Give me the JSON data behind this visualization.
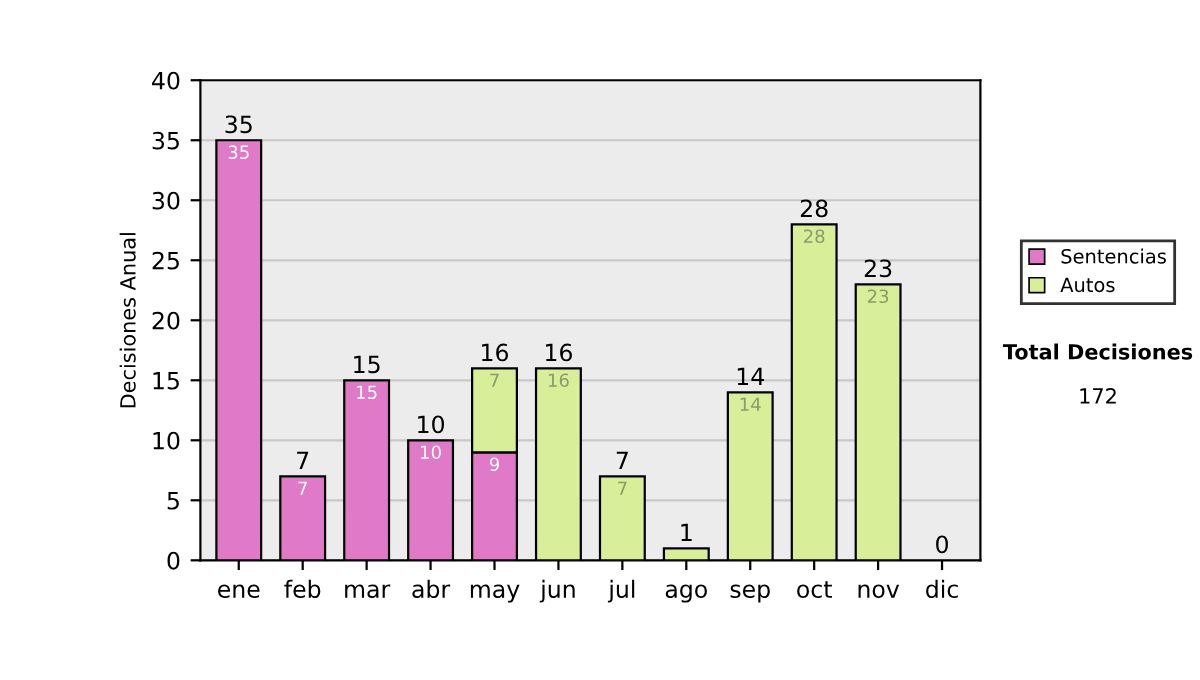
{
  "chart_data": {
    "type": "bar",
    "ylabel": "Decisiones Anual",
    "categories": [
      "ene",
      "feb",
      "mar",
      "abr",
      "may",
      "jun",
      "jul",
      "ago",
      "sep",
      "oct",
      "nov",
      "dic"
    ],
    "stacked": true,
    "series": [
      {
        "name": "Sentencias",
        "color": "#e07ac8",
        "values": [
          35,
          7,
          15,
          10,
          9,
          0,
          0,
          0,
          0,
          0,
          0,
          0
        ],
        "value_labels": [
          "35",
          "7",
          "15",
          "10",
          "9",
          null,
          null,
          null,
          null,
          null,
          null,
          null
        ]
      },
      {
        "name": "Autos",
        "color": "#d8ee98",
        "values": [
          0,
          0,
          0,
          0,
          7,
          16,
          7,
          1,
          14,
          28,
          23,
          0
        ],
        "value_labels": [
          null,
          null,
          null,
          null,
          "7",
          "16",
          "7",
          null,
          "14",
          "28",
          "23",
          null
        ]
      }
    ],
    "totals": [
      "35",
      "7",
      "15",
      "10",
      "16",
      "16",
      "7",
      "1",
      "14",
      "28",
      "23",
      "0"
    ],
    "ylim": [
      0,
      40
    ],
    "yticks": [
      0,
      5,
      10,
      15,
      20,
      25,
      30,
      35,
      40
    ],
    "grid": "y",
    "legend": "right",
    "annotations": [
      "Total Decisiones",
      "172"
    ]
  }
}
